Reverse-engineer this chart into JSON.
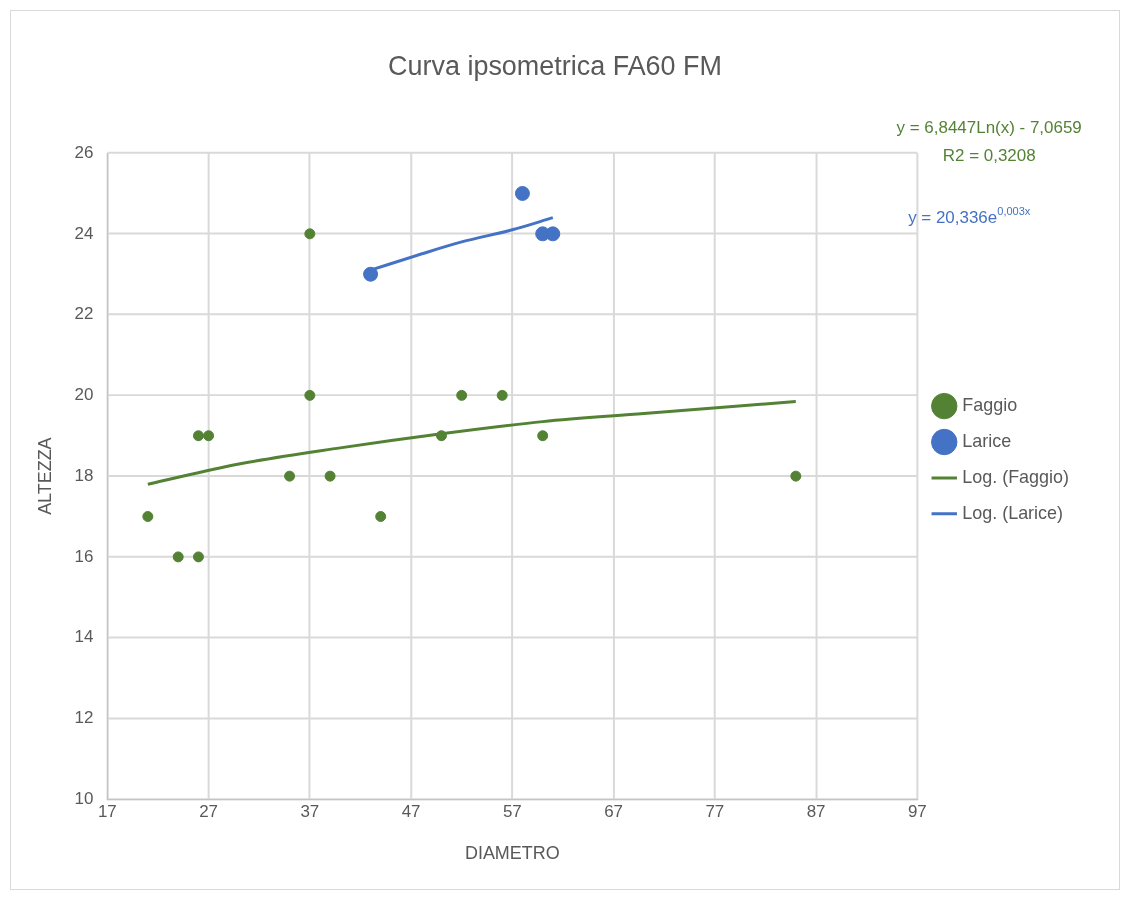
{
  "chart_data": {
    "type": "scatter",
    "title": "Curva ipsometrica FA60 FM",
    "xlabel": "DIAMETRO",
    "ylabel": "ALTEZZA",
    "xlim": [
      17,
      97
    ],
    "xticks": [
      17,
      27,
      37,
      47,
      57,
      67,
      77,
      87,
      97
    ],
    "ylim": [
      10,
      26
    ],
    "yticks": [
      10,
      12,
      14,
      16,
      18,
      20,
      22,
      24,
      26
    ],
    "grid": true,
    "legend": "right",
    "series": [
      {
        "name": "Faggio",
        "color": "#548235",
        "marker": "circle",
        "x": [
          21,
          24,
          26,
          26,
          27,
          35,
          37,
          37,
          39,
          44,
          50,
          52,
          56,
          60,
          85
        ],
        "values": [
          17,
          16,
          16,
          19,
          19,
          18,
          24,
          20,
          18,
          17,
          19,
          20,
          20,
          19,
          18
        ]
      },
      {
        "name": "Larice",
        "color": "#4472c4",
        "marker": "circle",
        "x": [
          43,
          58,
          60,
          61
        ],
        "values": [
          23,
          25,
          24,
          24
        ]
      },
      {
        "name": "Log. (Faggio)",
        "type": "line",
        "marker": "none",
        "color": "#548235",
        "x": [
          21,
          30,
          40,
          50,
          60,
          70,
          85
        ],
        "values": [
          17.8,
          18.3,
          18.7,
          19.05,
          19.35,
          19.55,
          19.85
        ]
      },
      {
        "name": "Log. (Larice)",
        "type": "line",
        "marker": "none",
        "color": "#4472c4",
        "x": [
          43,
          48,
          52,
          57,
          61
        ],
        "values": [
          23.1,
          23.5,
          23.8,
          24.1,
          24.4
        ]
      }
    ],
    "annotations": [
      "y = 6,8447Ln(x) - 7,0659",
      "R2 = 0,3208",
      "y = 20,336e$^{0,003x}$"
    ]
  }
}
